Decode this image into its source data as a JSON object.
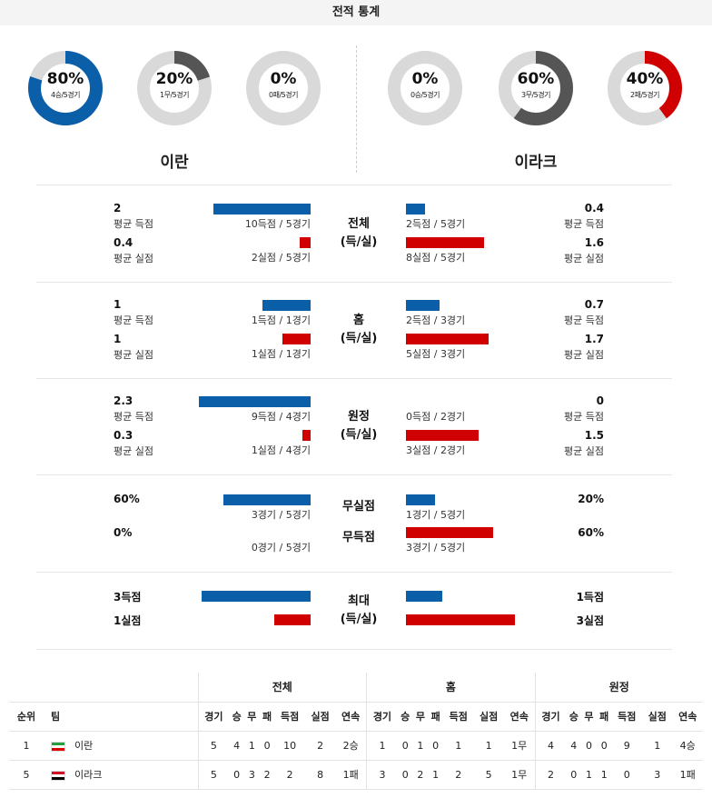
{
  "header": {
    "title": "전적 통계"
  },
  "teams": {
    "home": "이란",
    "away": "이라크"
  },
  "donuts": [
    {
      "pct": "80%",
      "sub": "4승/5경기",
      "value": 0.8,
      "color": "#0b5ea8"
    },
    {
      "pct": "20%",
      "sub": "1무/5경기",
      "value": 0.2,
      "color": "#555555"
    },
    {
      "pct": "0%",
      "sub": "0패/5경기",
      "value": 0,
      "color": "#d10000"
    },
    {
      "pct": "0%",
      "sub": "0승/5경기",
      "value": 0,
      "color": "#0b5ea8"
    },
    {
      "pct": "60%",
      "sub": "3무/5경기",
      "value": 0.6,
      "color": "#555555"
    },
    {
      "pct": "40%",
      "sub": "2패/5경기",
      "value": 0.4,
      "color": "#d10000"
    }
  ],
  "sections": [
    {
      "label1": "전체",
      "label2": "(득/실)",
      "home": {
        "gf": "2",
        "gf_lbl": "평균 득점",
        "gf_cap": "10득점 / 5경기",
        "gf_val": 2,
        "ga": "0.4",
        "ga_lbl": "평균 실점",
        "ga_cap": "2실점 / 5경기",
        "ga_val": 0.4
      },
      "away": {
        "gf": "0.4",
        "gf_lbl": "평균 득점",
        "gf_cap": "2득점 / 5경기",
        "gf_val": 0.4,
        "ga": "1.6",
        "ga_lbl": "평균 실점",
        "ga_cap": "8실점 / 5경기",
        "ga_val": 1.6
      }
    },
    {
      "label1": "홈",
      "label2": "(득/실)",
      "home": {
        "gf": "1",
        "gf_lbl": "평균 득점",
        "gf_cap": "1득점 / 1경기",
        "gf_val": 1,
        "ga": "1",
        "ga_lbl": "평균 실점",
        "ga_cap": "1실점 / 1경기",
        "ga_val": 1
      },
      "away": {
        "gf": "0.7",
        "gf_lbl": "평균 득점",
        "gf_cap": "2득점 / 3경기",
        "gf_val": 0.7,
        "ga": "1.7",
        "ga_lbl": "평균 실점",
        "ga_cap": "5실점 / 3경기",
        "ga_val": 1.7
      }
    },
    {
      "label1": "원정",
      "label2": "(득/실)",
      "home": {
        "gf": "2.3",
        "gf_lbl": "평균 득점",
        "gf_cap": "9득점 / 4경기",
        "gf_val": 2.3,
        "ga": "0.3",
        "ga_lbl": "평균 실점",
        "ga_cap": "1실점 / 4경기",
        "ga_val": 0.3
      },
      "away": {
        "gf": "0",
        "gf_lbl": "평균 득점",
        "gf_cap": "0득점 / 2경기",
        "gf_val": 0,
        "ga": "1.5",
        "ga_lbl": "평균 실점",
        "ga_cap": "3실점 / 2경기",
        "ga_val": 1.5
      }
    }
  ],
  "clean": {
    "label_a": "무실점",
    "label_b": "무득점",
    "home": {
      "a": "60%",
      "a_cap": "3경기 / 5경기",
      "a_val": 0.6,
      "b": "0%",
      "b_cap": "0경기 / 5경기",
      "b_val": 0
    },
    "away": {
      "a": "20%",
      "a_cap": "1경기 / 5경기",
      "a_val": 0.2,
      "b": "60%",
      "b_cap": "3경기 / 5경기",
      "b_val": 0.6
    }
  },
  "max": {
    "label1": "최대",
    "label2": "(득/실)",
    "home": {
      "gf": "3득점",
      "gf_val": 3,
      "ga": "1실점",
      "ga_val": 1
    },
    "away": {
      "gf": "1득점",
      "gf_val": 1,
      "ga": "3실점",
      "ga_val": 3
    }
  },
  "standings": {
    "groups": [
      "전체",
      "홈",
      "원정"
    ],
    "rank_hdr": "순위",
    "team_hdr": "팀",
    "cols": [
      "경기",
      "승",
      "무",
      "패",
      "득점",
      "실점",
      "연속"
    ],
    "rows": [
      {
        "rank": "1",
        "team": "이란",
        "flag": "iran",
        "total": [
          "5",
          "4",
          "1",
          "0",
          "10",
          "2",
          "2승"
        ],
        "home": [
          "1",
          "0",
          "1",
          "0",
          "1",
          "1",
          "1무"
        ],
        "away": [
          "4",
          "4",
          "0",
          "0",
          "9",
          "1",
          "4승"
        ]
      },
      {
        "rank": "5",
        "team": "이라크",
        "flag": "iraq",
        "total": [
          "5",
          "0",
          "3",
          "2",
          "2",
          "8",
          "1패"
        ],
        "home": [
          "3",
          "0",
          "2",
          "1",
          "2",
          "5",
          "1무"
        ],
        "away": [
          "2",
          "0",
          "1",
          "1",
          "0",
          "3",
          "1패"
        ]
      }
    ]
  }
}
